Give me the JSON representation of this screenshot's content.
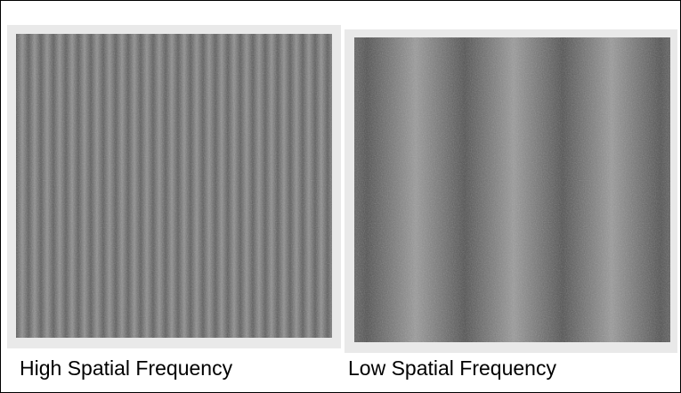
{
  "panels": [
    {
      "caption": "High Spatial Frequency"
    },
    {
      "caption": "Low Spatial Frequency"
    }
  ]
}
